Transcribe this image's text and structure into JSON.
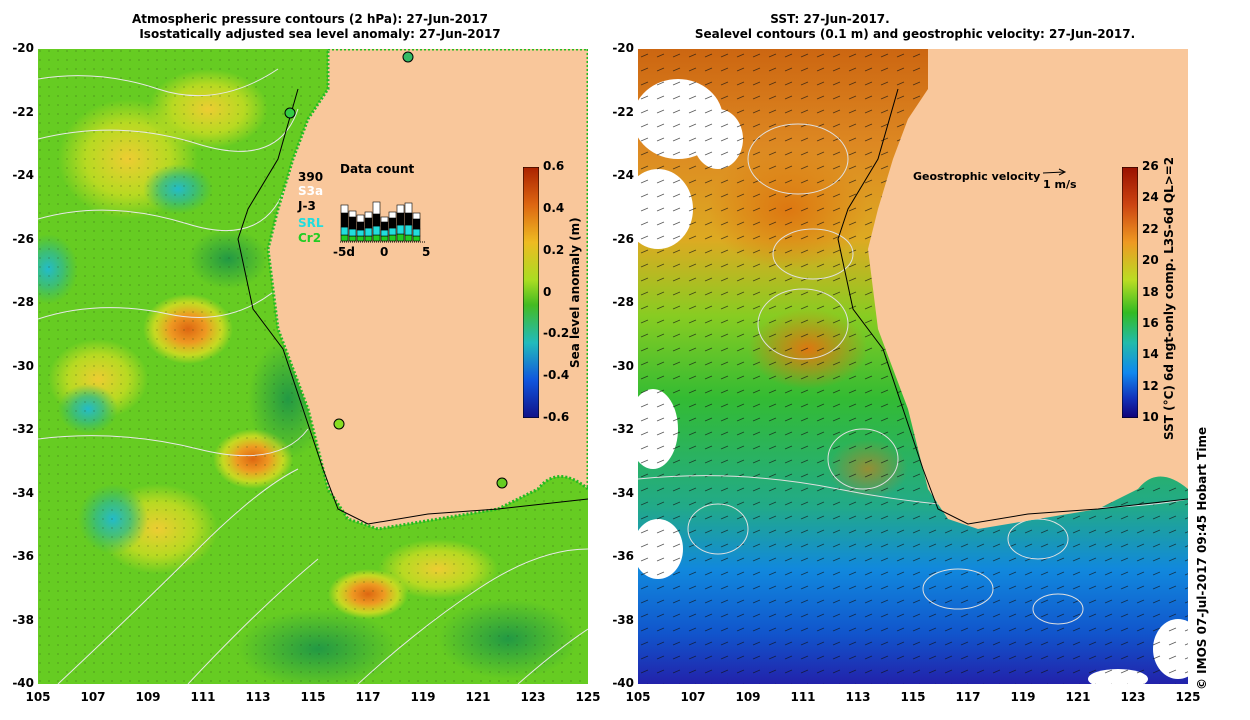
{
  "left_panel": {
    "title_line1": "Atmospheric pressure contours (2 hPa): 27-Jun-2017",
    "title_line2": "Isostatically adjusted sea level anomaly: 27-Jun-2017",
    "y_ticks": [
      "-20",
      "-22",
      "-24",
      "-26",
      "-28",
      "-30",
      "-32",
      "-34",
      "-36",
      "-38",
      "-40"
    ],
    "x_ticks": [
      "105",
      "107",
      "109",
      "111",
      "113",
      "115",
      "117",
      "119",
      "121",
      "123",
      "125"
    ],
    "colorbar": {
      "label": "Sea level anomaly (m)",
      "ticks": [
        "0.6",
        "0.4",
        "0.2",
        "0",
        "-0.2",
        "-0.4",
        "-0.6"
      ]
    },
    "data_count": {
      "title": "Data count",
      "total": "390",
      "series": [
        {
          "name": "S3a",
          "color": "#ffffff"
        },
        {
          "name": "J-3",
          "color": "#000000"
        },
        {
          "name": "SRL",
          "color": "#22dddd"
        },
        {
          "name": "Cr2",
          "color": "#22cc22"
        }
      ],
      "x_ticks": [
        "-5d",
        "0",
        "5"
      ]
    }
  },
  "right_panel": {
    "title_line1": "SST: 27-Jun-2017.",
    "title_line2": "Sealevel contours (0.1 m) and geostrophic velocity: 27-Jun-2017.",
    "y_ticks": [
      "-20",
      "-22",
      "-24",
      "-26",
      "-28",
      "-30",
      "-32",
      "-34",
      "-36",
      "-38",
      "-40"
    ],
    "x_ticks": [
      "105",
      "107",
      "109",
      "111",
      "113",
      "115",
      "117",
      "119",
      "121",
      "123",
      "125"
    ],
    "velocity_label": "Geostrophic velocity",
    "velocity_scale": "1 m/s",
    "colorbar": {
      "label": "SST (°C) 6d ngt-only comp. L3S-6d QL>=2",
      "ticks": [
        "26",
        "24",
        "22",
        "20",
        "18",
        "16",
        "14",
        "12",
        "10"
      ]
    }
  },
  "footer": {
    "credit": "© IMOS 07-Jul-2017 09:45 Hobart Time"
  },
  "colors": {
    "land": "#f9c79b",
    "sla_base": "#66cc22",
    "sst_warm": "#cc5500",
    "sst_cool": "#1177dd"
  }
}
